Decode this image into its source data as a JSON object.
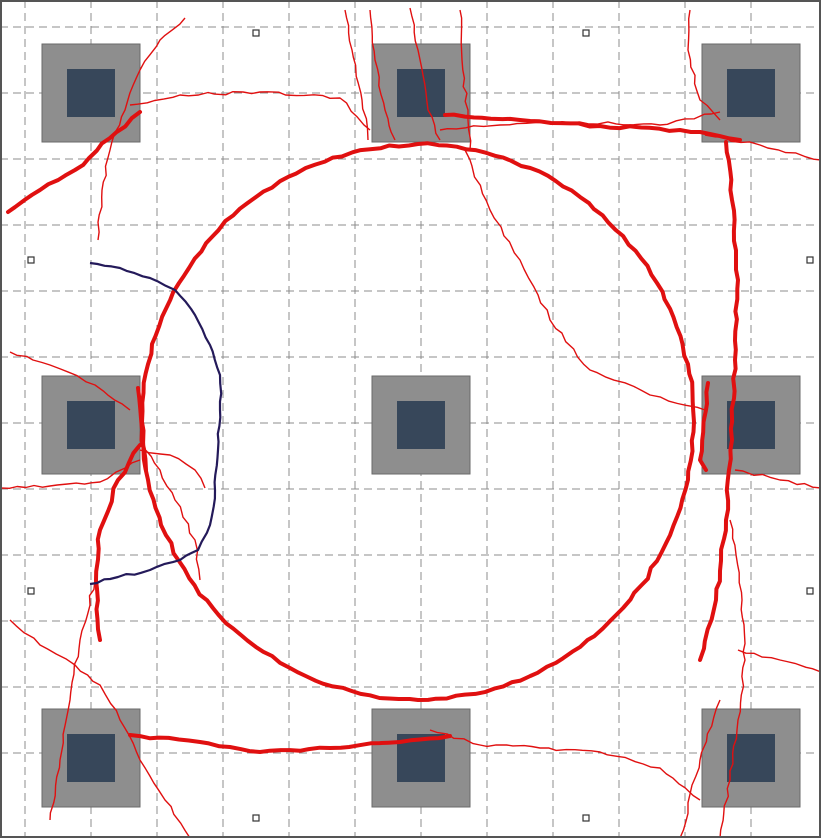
{
  "colors": {
    "background": "#ffffff",
    "grid_line": "#8c8c8c",
    "border": "#555555",
    "square_outer": "#8e8e8e",
    "square_inner": "#37475a",
    "marker_fill": "#ffffff",
    "marker_stroke": "#333333",
    "crack_red": "#e01010",
    "crack_dark": "#241a5a"
  },
  "grid": {
    "columns": 12,
    "rows": 12,
    "style": "dashed"
  },
  "squares": [
    {
      "id": "top-left"
    },
    {
      "id": "top-center"
    },
    {
      "id": "top-right"
    },
    {
      "id": "middle-left"
    },
    {
      "id": "center"
    },
    {
      "id": "middle-right"
    },
    {
      "id": "bottom-left"
    },
    {
      "id": "bottom-center"
    },
    {
      "id": "bottom-right"
    }
  ],
  "markers": [
    {
      "id": "top-1"
    },
    {
      "id": "top-2"
    },
    {
      "id": "left-1"
    },
    {
      "id": "right-1"
    },
    {
      "id": "left-2"
    },
    {
      "id": "right-2"
    },
    {
      "id": "bottom-1"
    },
    {
      "id": "bottom-2"
    }
  ],
  "cracks": {
    "thick_count": 8,
    "thin_count": 20,
    "dark_count": 1
  }
}
